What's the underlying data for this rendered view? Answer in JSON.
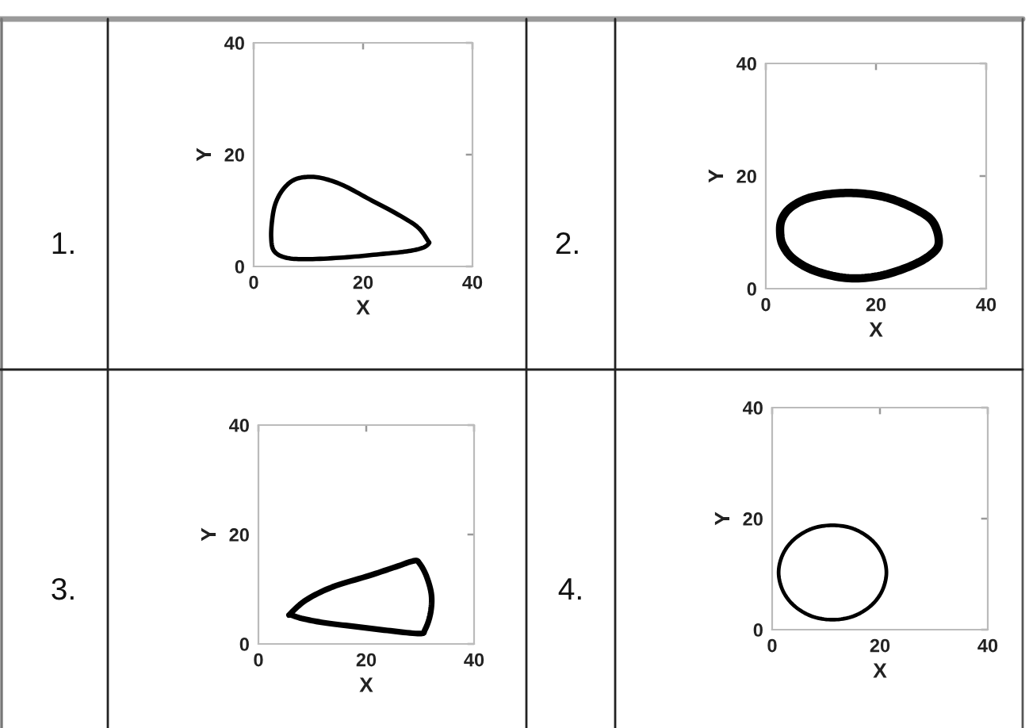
{
  "chart_data": [
    {
      "type": "line",
      "xlabel": "X",
      "ylabel": "Y",
      "annotations": [
        "1."
      ],
      "xlim": [
        0,
        40
      ],
      "ylim": [
        0,
        40
      ],
      "xticks": [
        0,
        20,
        40
      ],
      "yticks": [
        0,
        20,
        40
      ]
    },
    {
      "type": "line",
      "xlabel": "X",
      "ylabel": "Y",
      "annotations": [
        "2."
      ],
      "xlim": [
        0,
        40
      ],
      "ylim": [
        0,
        40
      ],
      "xticks": [
        0,
        20,
        40
      ],
      "yticks": [
        0,
        20,
        40
      ]
    },
    {
      "type": "line",
      "xlabel": "X",
      "ylabel": "Y",
      "annotations": [
        "3."
      ],
      "xlim": [
        0,
        40
      ],
      "ylim": [
        0,
        40
      ],
      "xticks": [
        0,
        20,
        40
      ],
      "yticks": [
        0,
        20,
        40
      ]
    },
    {
      "type": "line",
      "xlabel": "X",
      "ylabel": "Y",
      "annotations": [
        "4."
      ],
      "xlim": [
        0,
        40
      ],
      "ylim": [
        0,
        40
      ],
      "xticks": [
        0,
        20,
        40
      ],
      "yticks": [
        0,
        20,
        40
      ]
    }
  ]
}
